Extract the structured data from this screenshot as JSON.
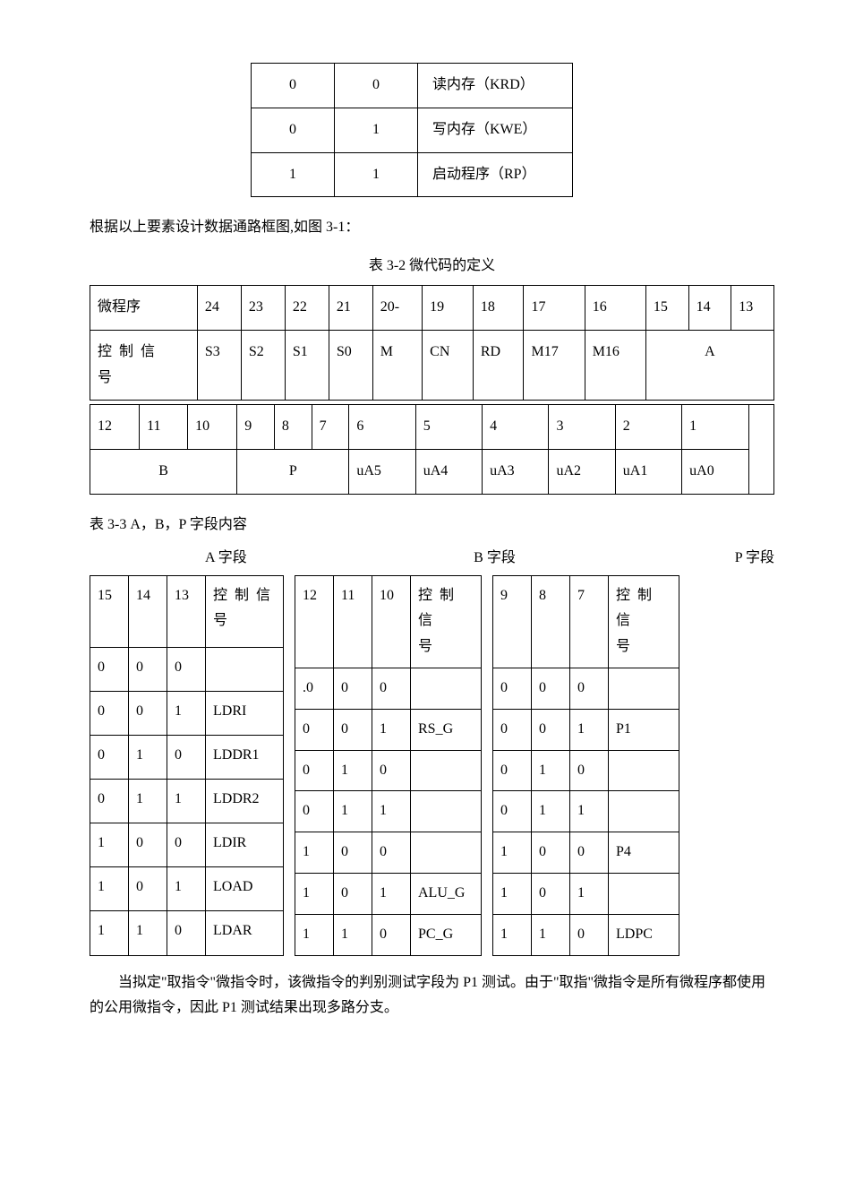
{
  "top_table": {
    "rows": [
      [
        "0",
        "0",
        "读内存（KRD）"
      ],
      [
        "0",
        "1",
        "写内存（KWE）"
      ],
      [
        "1",
        "1",
        "启动程序（RP）"
      ]
    ]
  },
  "text_after_top": "根据以上要素设计数据通路框图,如图 3-1：",
  "microcode_caption": "表 3-2 微代码的定义",
  "microcode_table_top": {
    "row1": [
      "微程序",
      "24",
      "23",
      "22",
      "21",
      "20-",
      "19",
      "18",
      "17",
      "16",
      "15",
      "14",
      "13"
    ],
    "row2": [
      "控制信号",
      "S3",
      "S2",
      "S1",
      "S0",
      "M",
      "CN",
      "RD",
      "M17",
      "M16",
      "A"
    ]
  },
  "microcode_table_bottom": {
    "row1": [
      "12",
      "11",
      "10",
      "9",
      "8",
      "7",
      "6",
      "5",
      "4",
      "3",
      "2",
      "1"
    ],
    "row2": [
      "B",
      "P",
      "uA5",
      "uA4",
      "uA3",
      "uA2",
      "uA1",
      "uA0"
    ]
  },
  "abp_caption": "表 3-3 A，B，P 字段内容",
  "abp_headers": {
    "a": "A 字段",
    "b": "B 字段",
    "p": "P 字段"
  },
  "a_field": {
    "header": [
      "15",
      "14",
      "13",
      "控制信号"
    ],
    "rows": [
      [
        "0",
        "0",
        "0",
        ""
      ],
      [
        "0",
        "0",
        "1",
        "LDRI"
      ],
      [
        "0",
        "1",
        "0",
        "LDDR1"
      ],
      [
        "0",
        "1",
        "1",
        "LDDR2"
      ],
      [
        "1",
        "0",
        "0",
        "LDIR"
      ],
      [
        "1",
        "0",
        "1",
        "LOAD"
      ],
      [
        "1",
        "1",
        "0",
        "LDAR"
      ]
    ]
  },
  "b_field": {
    "header": [
      "12",
      "11",
      "10",
      "控制信号"
    ],
    "rows": [
      [
        ".0",
        "0",
        "0",
        ""
      ],
      [
        "0",
        "0",
        "1",
        "RS_G"
      ],
      [
        "0",
        "1",
        "0",
        ""
      ],
      [
        "0",
        "1",
        "1",
        ""
      ],
      [
        "1",
        "0",
        "0",
        ""
      ],
      [
        "1",
        "0",
        "1",
        "ALU_G"
      ],
      [
        "1",
        "1",
        "0",
        "PC_G"
      ]
    ]
  },
  "p_field": {
    "header": [
      "9",
      "8",
      "7",
      "控制信号"
    ],
    "rows": [
      [
        "0",
        "0",
        "0",
        ""
      ],
      [
        "0",
        "0",
        "1",
        "P1"
      ],
      [
        "0",
        "1",
        "0",
        ""
      ],
      [
        "0",
        "1",
        "1",
        ""
      ],
      [
        "1",
        "0",
        "0",
        "P4"
      ],
      [
        "1",
        "0",
        "1",
        ""
      ],
      [
        "1",
        "1",
        "0",
        "LDPC"
      ]
    ]
  },
  "bottom_para": "当拟定\"取指令\"微指令时，该微指令的判别测试字段为 P1 测试。由于\"取指\"微指令是所有微程序都使用的公用微指令，因此 P1 测试结果出现多路分支。",
  "colors": {
    "text": "#000000",
    "background": "#ffffff",
    "border": "#000000"
  },
  "typography": {
    "font_family": "SimSun",
    "body_fontsize_pt": 12
  }
}
